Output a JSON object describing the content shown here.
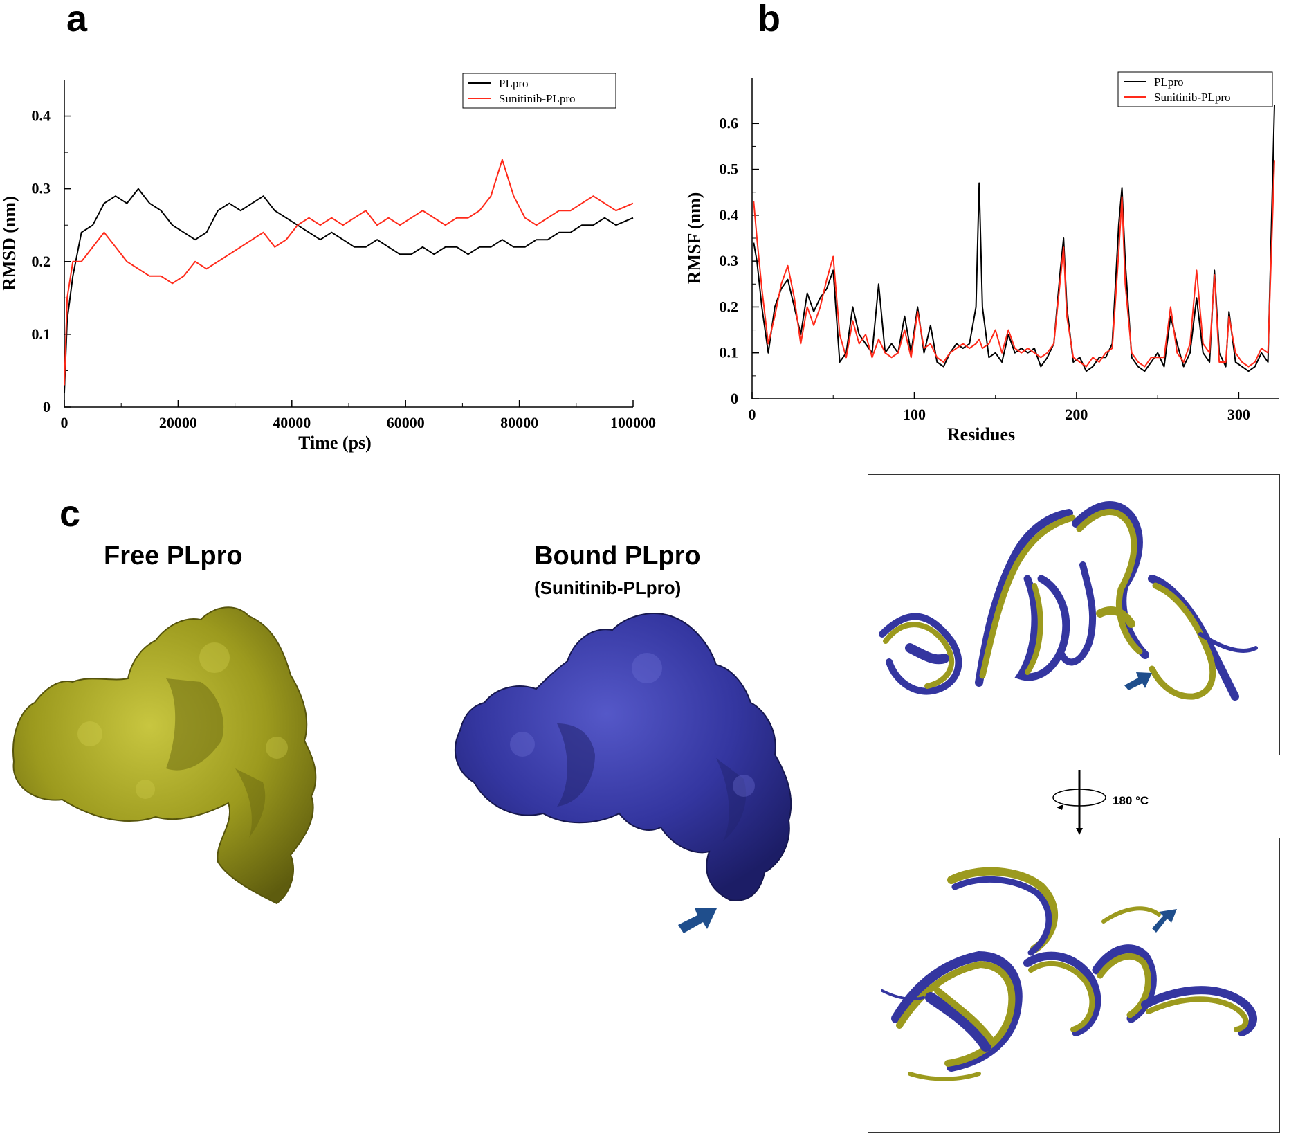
{
  "panels": {
    "a": "a",
    "b": "b",
    "c": "c"
  },
  "structures": {
    "free_title": "Free PLpro",
    "bound_title": "Bound PLpro",
    "bound_subtitle": "(Sunitinib-PLpro)",
    "rotation_label": "180 °C",
    "free_color": "#9c9a1e",
    "bound_color": "#3436a0",
    "arrow_color": "#1f4e8c"
  },
  "chart_data": [
    {
      "type": "line",
      "panel": "a",
      "xlabel": "Time (ps)",
      "ylabel": "RMSD (nm)",
      "xlim": [
        0,
        100000
      ],
      "ylim": [
        0,
        0.45
      ],
      "xticks": [
        "0",
        "20000",
        "40000",
        "60000",
        "80000",
        "100000"
      ],
      "yticks": [
        "0",
        "0.1",
        "0.2",
        "0.3",
        "0.4"
      ],
      "grid": false,
      "legend": "top-right",
      "series": [
        {
          "name": "PLpro",
          "color": "#000000",
          "x": [
            0,
            500,
            1500,
            3000,
            5000,
            7000,
            9000,
            11000,
            13000,
            15000,
            17000,
            19000,
            21000,
            23000,
            25000,
            27000,
            29000,
            31000,
            33000,
            35000,
            37000,
            39000,
            41000,
            43000,
            45000,
            47000,
            49000,
            51000,
            53000,
            55000,
            57000,
            59000,
            61000,
            63000,
            65000,
            67000,
            69000,
            71000,
            73000,
            75000,
            77000,
            79000,
            81000,
            83000,
            85000,
            87000,
            89000,
            91000,
            93000,
            95000,
            97000,
            100000
          ],
          "y": [
            0.02,
            0.12,
            0.18,
            0.24,
            0.25,
            0.28,
            0.29,
            0.28,
            0.3,
            0.28,
            0.27,
            0.25,
            0.24,
            0.23,
            0.24,
            0.27,
            0.28,
            0.27,
            0.28,
            0.29,
            0.27,
            0.26,
            0.25,
            0.24,
            0.23,
            0.24,
            0.23,
            0.22,
            0.22,
            0.23,
            0.22,
            0.21,
            0.21,
            0.22,
            0.21,
            0.22,
            0.22,
            0.21,
            0.22,
            0.22,
            0.23,
            0.22,
            0.22,
            0.23,
            0.23,
            0.24,
            0.24,
            0.25,
            0.25,
            0.26,
            0.25,
            0.26
          ]
        },
        {
          "name": "Sunitinib-PLpro",
          "color": "#ff2a1a",
          "x": [
            0,
            500,
            1500,
            3000,
            5000,
            7000,
            9000,
            11000,
            13000,
            15000,
            17000,
            19000,
            21000,
            23000,
            25000,
            27000,
            29000,
            31000,
            33000,
            35000,
            37000,
            39000,
            41000,
            43000,
            45000,
            47000,
            49000,
            51000,
            53000,
            55000,
            57000,
            59000,
            61000,
            63000,
            65000,
            67000,
            69000,
            71000,
            73000,
            75000,
            77000,
            79000,
            81000,
            83000,
            85000,
            87000,
            89000,
            91000,
            93000,
            95000,
            97000,
            100000
          ],
          "y": [
            0.03,
            0.15,
            0.2,
            0.2,
            0.22,
            0.24,
            0.22,
            0.2,
            0.19,
            0.18,
            0.18,
            0.17,
            0.18,
            0.2,
            0.19,
            0.2,
            0.21,
            0.22,
            0.23,
            0.24,
            0.22,
            0.23,
            0.25,
            0.26,
            0.25,
            0.26,
            0.25,
            0.26,
            0.27,
            0.25,
            0.26,
            0.25,
            0.26,
            0.27,
            0.26,
            0.25,
            0.26,
            0.26,
            0.27,
            0.29,
            0.34,
            0.29,
            0.26,
            0.25,
            0.26,
            0.27,
            0.27,
            0.28,
            0.29,
            0.28,
            0.27,
            0.28
          ]
        }
      ]
    },
    {
      "type": "line",
      "panel": "b",
      "xlabel": "Residues",
      "ylabel": "RMSF (nm)",
      "xlim": [
        0,
        325
      ],
      "ylim": [
        0,
        0.7
      ],
      "xticks": [
        "0",
        "100",
        "200",
        "300"
      ],
      "yticks": [
        "0",
        "0.1",
        "0.2",
        "0.3",
        "0.4",
        "0.5",
        "0.6"
      ],
      "grid": false,
      "legend": "top-right",
      "series": [
        {
          "name": "PLpro",
          "color": "#000000",
          "x": [
            1,
            3,
            6,
            10,
            14,
            18,
            22,
            26,
            30,
            34,
            38,
            42,
            46,
            50,
            54,
            58,
            62,
            66,
            70,
            74,
            78,
            82,
            86,
            90,
            94,
            98,
            102,
            106,
            110,
            114,
            118,
            122,
            126,
            130,
            134,
            138,
            140,
            142,
            146,
            150,
            154,
            158,
            162,
            166,
            170,
            174,
            178,
            182,
            186,
            190,
            192,
            194,
            198,
            202,
            206,
            210,
            214,
            218,
            222,
            226,
            228,
            230,
            234,
            238,
            242,
            246,
            250,
            254,
            258,
            262,
            266,
            270,
            274,
            278,
            282,
            285,
            288,
            292,
            294,
            298,
            302,
            306,
            310,
            314,
            318,
            322
          ],
          "y": [
            0.34,
            0.3,
            0.2,
            0.1,
            0.2,
            0.24,
            0.26,
            0.2,
            0.14,
            0.23,
            0.19,
            0.22,
            0.24,
            0.28,
            0.08,
            0.1,
            0.2,
            0.14,
            0.12,
            0.1,
            0.25,
            0.1,
            0.12,
            0.1,
            0.18,
            0.1,
            0.2,
            0.1,
            0.16,
            0.08,
            0.07,
            0.1,
            0.12,
            0.11,
            0.12,
            0.2,
            0.47,
            0.2,
            0.09,
            0.1,
            0.08,
            0.14,
            0.1,
            0.11,
            0.1,
            0.11,
            0.07,
            0.09,
            0.12,
            0.28,
            0.35,
            0.2,
            0.08,
            0.09,
            0.06,
            0.07,
            0.09,
            0.09,
            0.12,
            0.38,
            0.46,
            0.3,
            0.09,
            0.07,
            0.06,
            0.08,
            0.1,
            0.07,
            0.18,
            0.12,
            0.07,
            0.1,
            0.22,
            0.1,
            0.08,
            0.28,
            0.1,
            0.07,
            0.19,
            0.08,
            0.07,
            0.06,
            0.07,
            0.1,
            0.08,
            0.64
          ]
        },
        {
          "name": "Sunitinib-PLpro",
          "color": "#ff2a1a",
          "x": [
            1,
            3,
            6,
            10,
            14,
            18,
            22,
            26,
            30,
            34,
            38,
            42,
            46,
            50,
            54,
            58,
            62,
            66,
            70,
            74,
            78,
            82,
            86,
            90,
            94,
            98,
            102,
            106,
            110,
            114,
            118,
            122,
            126,
            130,
            134,
            138,
            140,
            142,
            146,
            150,
            154,
            158,
            162,
            166,
            170,
            174,
            178,
            182,
            186,
            190,
            192,
            194,
            198,
            202,
            206,
            210,
            214,
            218,
            222,
            226,
            228,
            230,
            234,
            238,
            242,
            246,
            250,
            254,
            258,
            262,
            266,
            270,
            274,
            278,
            282,
            285,
            288,
            292,
            294,
            298,
            302,
            306,
            310,
            314,
            318,
            322
          ],
          "y": [
            0.43,
            0.35,
            0.24,
            0.12,
            0.18,
            0.25,
            0.29,
            0.22,
            0.12,
            0.2,
            0.16,
            0.2,
            0.26,
            0.31,
            0.14,
            0.09,
            0.17,
            0.12,
            0.14,
            0.09,
            0.13,
            0.1,
            0.09,
            0.1,
            0.15,
            0.09,
            0.19,
            0.11,
            0.12,
            0.09,
            0.08,
            0.1,
            0.11,
            0.12,
            0.11,
            0.12,
            0.13,
            0.11,
            0.12,
            0.15,
            0.1,
            0.15,
            0.11,
            0.1,
            0.11,
            0.1,
            0.09,
            0.1,
            0.12,
            0.26,
            0.33,
            0.18,
            0.09,
            0.08,
            0.07,
            0.09,
            0.08,
            0.1,
            0.11,
            0.32,
            0.44,
            0.25,
            0.1,
            0.08,
            0.07,
            0.09,
            0.09,
            0.09,
            0.2,
            0.1,
            0.08,
            0.12,
            0.28,
            0.12,
            0.1,
            0.27,
            0.08,
            0.08,
            0.18,
            0.1,
            0.08,
            0.07,
            0.08,
            0.11,
            0.1,
            0.52
          ]
        }
      ]
    }
  ]
}
